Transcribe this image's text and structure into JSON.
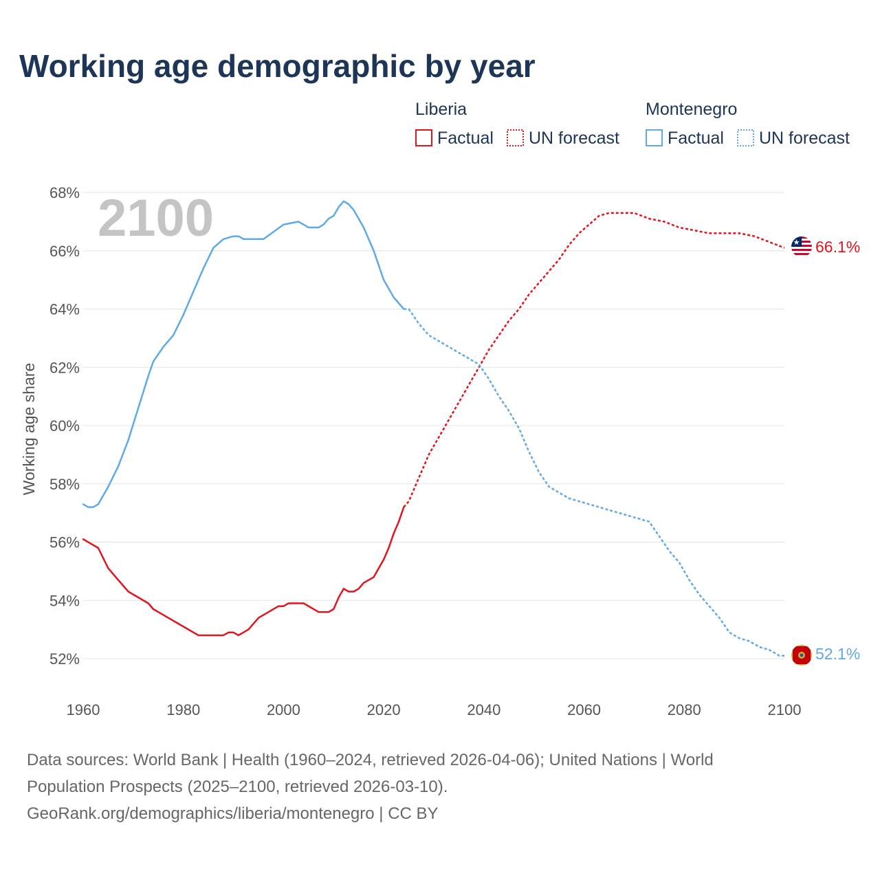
{
  "colors": {
    "liberia": "#e3141c",
    "montenegro": "#5ea9e6",
    "title": "#1d3557",
    "axis_text": "#555555",
    "year_watermark": "#c4c4c4"
  },
  "legend": {
    "groups": [
      {
        "name": "Liberia",
        "factual": "Factual",
        "forecast": "UN forecast"
      },
      {
        "name": "Montenegro",
        "factual": "Factual",
        "forecast": "UN forecast"
      }
    ]
  },
  "flags": {
    "liberia": "liberia-flag-icon",
    "montenegro": "montenegro-flag-icon"
  },
  "source": {
    "lines": [
      "Data sources: World Bank | Health (1960–2024, retrieved 2026-04-06); United Nations | World",
      "Population Prospects (2025–2100, retrieved 2026-03-10).",
      "GeoRank.org/demographics/liberia/montenegro | CC BY"
    ]
  },
  "chart_data": {
    "type": "line",
    "title": "Working age demographic by year",
    "year_label": "2100",
    "xlabel": "",
    "ylabel": "Working age share",
    "xlim": [
      1960,
      2100
    ],
    "ylim": [
      51.2,
      68.4
    ],
    "x_ticks": [
      1960,
      1980,
      2000,
      2020,
      2040,
      2060,
      2080,
      2100
    ],
    "y_ticks": [
      52,
      54,
      56,
      58,
      60,
      62,
      64,
      66,
      68
    ],
    "y_tick_labels": [
      "52%",
      "54%",
      "56%",
      "58%",
      "60%",
      "62%",
      "64%",
      "66%",
      "68%"
    ],
    "grid": true,
    "series": [
      {
        "name": "Liberia",
        "color_key": "liberia",
        "end_label": "66.1%",
        "factual": [
          [
            1960,
            56.1
          ],
          [
            1963,
            55.8
          ],
          [
            1965,
            55.1
          ],
          [
            1969,
            54.3
          ],
          [
            1973,
            53.9
          ],
          [
            1974,
            53.7
          ],
          [
            1983,
            52.8
          ],
          [
            1988,
            52.8
          ],
          [
            1989,
            52.9
          ],
          [
            1990,
            52.9
          ],
          [
            1991,
            52.8
          ],
          [
            1993,
            53.0
          ],
          [
            1995,
            53.4
          ],
          [
            1999,
            53.8
          ],
          [
            2000,
            53.8
          ],
          [
            2001,
            53.9
          ],
          [
            2004,
            53.9
          ],
          [
            2007,
            53.6
          ],
          [
            2009,
            53.6
          ],
          [
            2010,
            53.7
          ],
          [
            2011,
            54.1
          ],
          [
            2012,
            54.4
          ],
          [
            2013,
            54.3
          ],
          [
            2014,
            54.3
          ],
          [
            2015,
            54.4
          ],
          [
            2016,
            54.6
          ],
          [
            2018,
            54.8
          ],
          [
            2020,
            55.4
          ],
          [
            2021,
            55.8
          ],
          [
            2022,
            56.3
          ],
          [
            2023,
            56.7
          ],
          [
            2024,
            57.2
          ]
        ],
        "forecast": [
          [
            2024,
            57.2
          ],
          [
            2025,
            57.4
          ],
          [
            2027,
            58.2
          ],
          [
            2029,
            59.0
          ],
          [
            2031,
            59.6
          ],
          [
            2033,
            60.2
          ],
          [
            2035,
            60.8
          ],
          [
            2037,
            61.4
          ],
          [
            2039,
            62.0
          ],
          [
            2041,
            62.6
          ],
          [
            2043,
            63.1
          ],
          [
            2045,
            63.6
          ],
          [
            2047,
            64.0
          ],
          [
            2049,
            64.5
          ],
          [
            2051,
            64.9
          ],
          [
            2053,
            65.3
          ],
          [
            2055,
            65.7
          ],
          [
            2057,
            66.2
          ],
          [
            2059,
            66.6
          ],
          [
            2061,
            66.9
          ],
          [
            2063,
            67.2
          ],
          [
            2065,
            67.3
          ],
          [
            2067,
            67.3
          ],
          [
            2070,
            67.3
          ],
          [
            2073,
            67.1
          ],
          [
            2076,
            67.0
          ],
          [
            2079,
            66.8
          ],
          [
            2082,
            66.7
          ],
          [
            2085,
            66.6
          ],
          [
            2088,
            66.6
          ],
          [
            2091,
            66.6
          ],
          [
            2094,
            66.5
          ],
          [
            2097,
            66.3
          ],
          [
            2100,
            66.1
          ]
        ]
      },
      {
        "name": "Montenegro",
        "color_key": "montenegro",
        "end_label": "52.1%",
        "factual": [
          [
            1960,
            57.3
          ],
          [
            1961,
            57.2
          ],
          [
            1962,
            57.2
          ],
          [
            1963,
            57.3
          ],
          [
            1965,
            57.9
          ],
          [
            1967,
            58.6
          ],
          [
            1969,
            59.5
          ],
          [
            1971,
            60.6
          ],
          [
            1973,
            61.7
          ],
          [
            1974,
            62.2
          ],
          [
            1976,
            62.7
          ],
          [
            1978,
            63.1
          ],
          [
            1980,
            63.8
          ],
          [
            1982,
            64.6
          ],
          [
            1984,
            65.4
          ],
          [
            1986,
            66.1
          ],
          [
            1988,
            66.4
          ],
          [
            1990,
            66.5
          ],
          [
            1991,
            66.5
          ],
          [
            1992,
            66.4
          ],
          [
            1996,
            66.4
          ],
          [
            2000,
            66.9
          ],
          [
            2003,
            67.0
          ],
          [
            2005,
            66.8
          ],
          [
            2007,
            66.8
          ],
          [
            2008,
            66.9
          ],
          [
            2009,
            67.1
          ],
          [
            2010,
            67.2
          ],
          [
            2011,
            67.5
          ],
          [
            2012,
            67.7
          ],
          [
            2013,
            67.6
          ],
          [
            2014,
            67.4
          ],
          [
            2016,
            66.8
          ],
          [
            2018,
            66.0
          ],
          [
            2020,
            65.0
          ],
          [
            2022,
            64.4
          ],
          [
            2024,
            64.0
          ]
        ],
        "forecast": [
          [
            2024,
            64.0
          ],
          [
            2025,
            64.0
          ],
          [
            2027,
            63.5
          ],
          [
            2029,
            63.1
          ],
          [
            2031,
            62.9
          ],
          [
            2033,
            62.7
          ],
          [
            2035,
            62.5
          ],
          [
            2037,
            62.3
          ],
          [
            2039,
            62.1
          ],
          [
            2041,
            61.6
          ],
          [
            2043,
            61.0
          ],
          [
            2045,
            60.5
          ],
          [
            2047,
            59.9
          ],
          [
            2049,
            59.1
          ],
          [
            2051,
            58.4
          ],
          [
            2053,
            57.9
          ],
          [
            2055,
            57.7
          ],
          [
            2057,
            57.5
          ],
          [
            2059,
            57.4
          ],
          [
            2061,
            57.3
          ],
          [
            2063,
            57.2
          ],
          [
            2065,
            57.1
          ],
          [
            2067,
            57.0
          ],
          [
            2069,
            56.9
          ],
          [
            2071,
            56.8
          ],
          [
            2073,
            56.7
          ],
          [
            2075,
            56.2
          ],
          [
            2077,
            55.7
          ],
          [
            2079,
            55.3
          ],
          [
            2081,
            54.7
          ],
          [
            2083,
            54.2
          ],
          [
            2085,
            53.8
          ],
          [
            2087,
            53.4
          ],
          [
            2089,
            52.9
          ],
          [
            2091,
            52.7
          ],
          [
            2093,
            52.6
          ],
          [
            2095,
            52.4
          ],
          [
            2097,
            52.3
          ],
          [
            2099,
            52.1
          ],
          [
            2100,
            52.1
          ]
        ]
      }
    ]
  }
}
